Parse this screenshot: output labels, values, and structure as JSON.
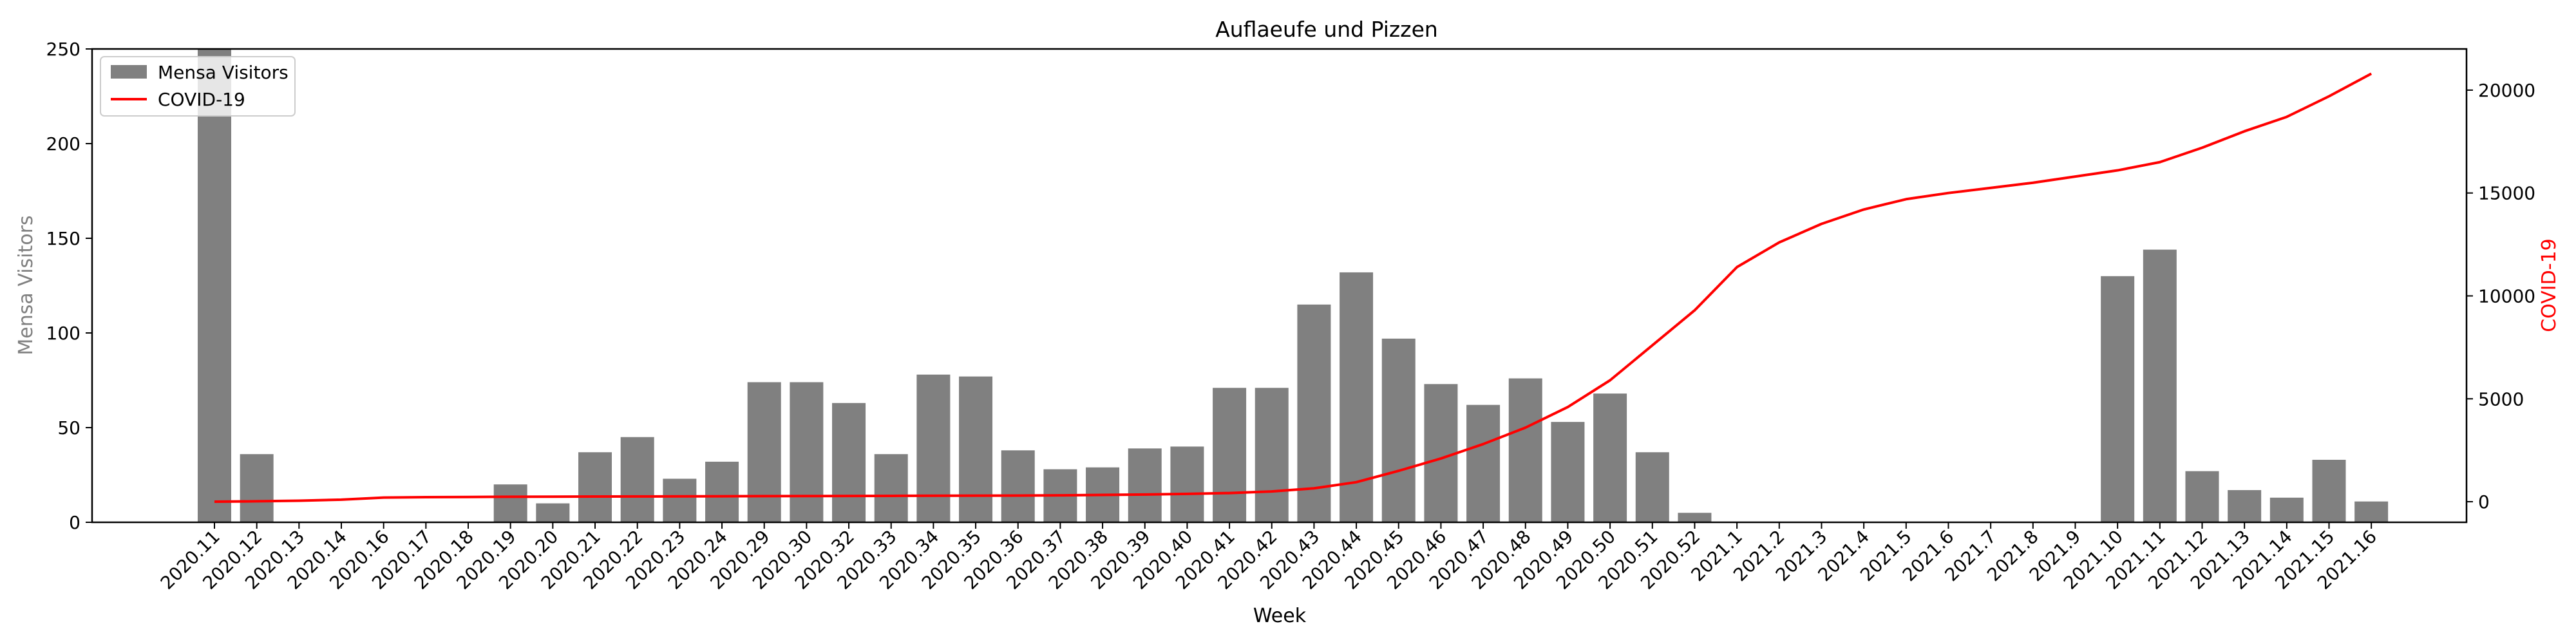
{
  "chart_data": {
    "type": "bar+line",
    "title": "Auflaeufe und Pizzen",
    "xlabel": "Week",
    "ylabel_left": "Mensa Visitors",
    "ylabel_right": "COVID-19",
    "ylim_left": [
      0,
      250
    ],
    "ylim_right": [
      -1000,
      22000
    ],
    "yticks_left": [
      "0",
      "50",
      "100",
      "150",
      "200",
      "250"
    ],
    "yticks_right": [
      "0",
      "5000",
      "10000",
      "15000",
      "20000"
    ],
    "grid": false,
    "legend_position": "top-left",
    "categories": [
      "2020.11",
      "2020.12",
      "2020.13",
      "2020.14",
      "2020.16",
      "2020.17",
      "2020.18",
      "2020.19",
      "2020.20",
      "2020.21",
      "2020.22",
      "2020.23",
      "2020.24",
      "2020.29",
      "2020.30",
      "2020.32",
      "2020.33",
      "2020.34",
      "2020.35",
      "2020.36",
      "2020.37",
      "2020.38",
      "2020.39",
      "2020.40",
      "2020.41",
      "2020.42",
      "2020.43",
      "2020.44",
      "2020.45",
      "2020.46",
      "2020.47",
      "2020.48",
      "2020.49",
      "2020.50",
      "2020.51",
      "2020.52",
      "2021.1",
      "2021.2",
      "2021.3",
      "2021.4",
      "2021.5",
      "2021.6",
      "2021.7",
      "2021.8",
      "2021.9",
      "2021.10",
      "2021.11",
      "2021.12",
      "2021.13",
      "2021.14",
      "2021.15",
      "2021.16"
    ],
    "series": [
      {
        "name": "Mensa Visitors",
        "kind": "bar",
        "axis": "left",
        "color": "#808080",
        "values": [
          250,
          36,
          0,
          0,
          0,
          0,
          0,
          20,
          10,
          37,
          45,
          23,
          32,
          74,
          74,
          63,
          36,
          78,
          77,
          38,
          28,
          29,
          39,
          40,
          71,
          71,
          115,
          132,
          97,
          73,
          62,
          76,
          53,
          68,
          37,
          5,
          0,
          0,
          0,
          0,
          0,
          0,
          0,
          0,
          0,
          130,
          144,
          27,
          17,
          13,
          33,
          11
        ]
      },
      {
        "name": "COVID-19",
        "kind": "line",
        "axis": "right",
        "color": "#ff0000",
        "values": [
          0,
          20,
          50,
          100,
          200,
          220,
          230,
          240,
          245,
          250,
          255,
          260,
          265,
          270,
          275,
          280,
          285,
          290,
          295,
          300,
          310,
          330,
          350,
          380,
          420,
          500,
          650,
          950,
          1500,
          2100,
          2800,
          3600,
          4600,
          5900,
          7600,
          9300,
          11400,
          12600,
          13500,
          14200,
          14700,
          15000,
          15250,
          15500,
          15800,
          16100,
          16500,
          17200,
          18000,
          18700,
          19700,
          20800
        ]
      }
    ]
  }
}
